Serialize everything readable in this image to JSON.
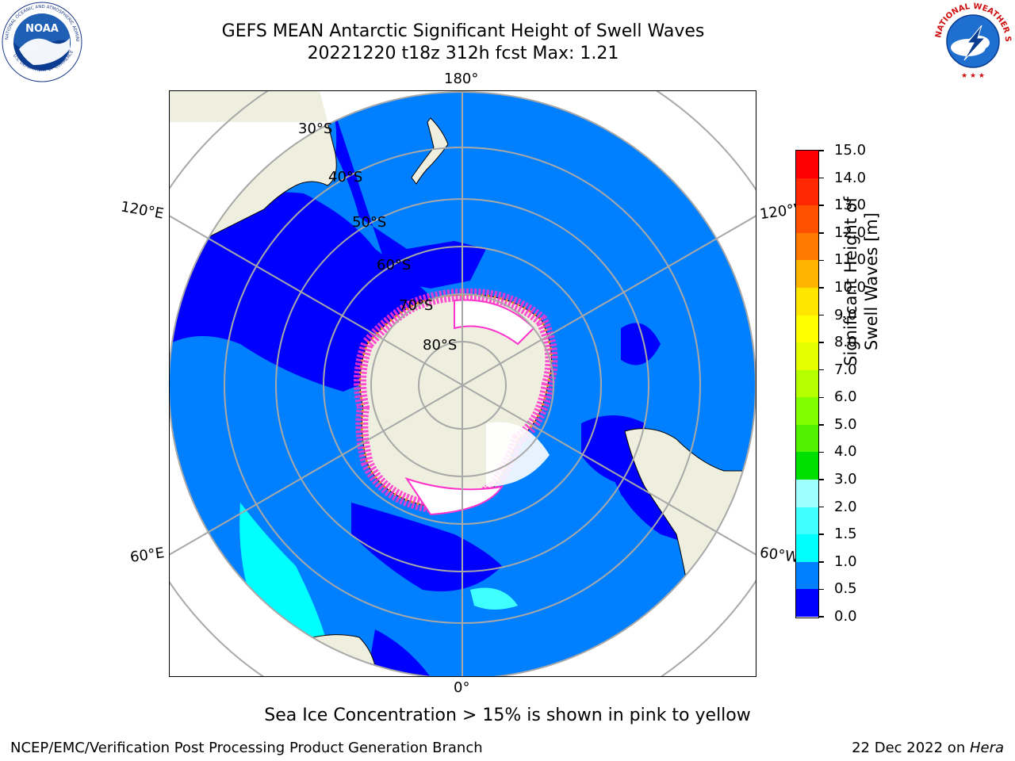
{
  "header": {
    "title_line1": "GEFS MEAN Antarctic Significant Height of Swell Waves",
    "title_line2": "20221220 t18z 312h fcst   Max: 1.21"
  },
  "logos": {
    "left": {
      "icon": "noaa-logo-icon",
      "text": "NOAA",
      "ring_text": "NATIONAL OCEANIC AND ATMOSPHERIC ADMINISTRATION · U.S. DEPARTMENT OF COMMERCE"
    },
    "right": {
      "icon": "national-weather-service-logo-icon",
      "ring_text": "NATIONAL WEATHER SERVICE"
    }
  },
  "map": {
    "projection": "south-polar-stereographic",
    "longitude_labels": {
      "top": "180°",
      "bottom": "0°",
      "upper_left": "120°E",
      "upper_right": "120°W",
      "lower_left": "60°E",
      "lower_right": "60°W"
    },
    "latitude_labels": [
      "30°S",
      "40°S",
      "50°S",
      "60°S",
      "70°S",
      "80°S"
    ],
    "colors": {
      "ocean_main": "#0080ff",
      "ocean_low": "#0000ff",
      "ocean_cyan": "#00ffff",
      "land": "#efefdf",
      "ice_white": "#ffffff",
      "ice_pink": "#ff33cc",
      "ice_orange": "#ffa500"
    }
  },
  "colorbar": {
    "label": "Significant Height of Swell Waves [m]",
    "tick_labels": [
      "15.0",
      "14.0",
      "13.0",
      "12.0",
      "11.0",
      "10.0",
      "9.0",
      "8.0",
      "7.0",
      "6.0",
      "5.0",
      "4.0",
      "3.0",
      "2.0",
      "1.5",
      "1.0",
      "0.5",
      "0.0"
    ],
    "segment_colors_top_to_bottom": [
      "#ff0000",
      "#ff2800",
      "#ff5000",
      "#ff7800",
      "#ff9600",
      "#ffb400",
      "#ffe600",
      "#ffff00",
      "#e6ff00",
      "#b4ff00",
      "#80ff00",
      "#50f000",
      "#00e000",
      "#40f080",
      "#a0ffff",
      "#40ffff",
      "#00ffff",
      "#0080ff",
      "#0000ff"
    ]
  },
  "caption": "Sea Ice Concentration > 15% is shown in pink to yellow",
  "footer": {
    "left": "NCEP/EMC/Verification Post Processing Product Generation Branch",
    "right_prefix": "22 Dec 2022 on ",
    "right_italic": "Hera"
  }
}
